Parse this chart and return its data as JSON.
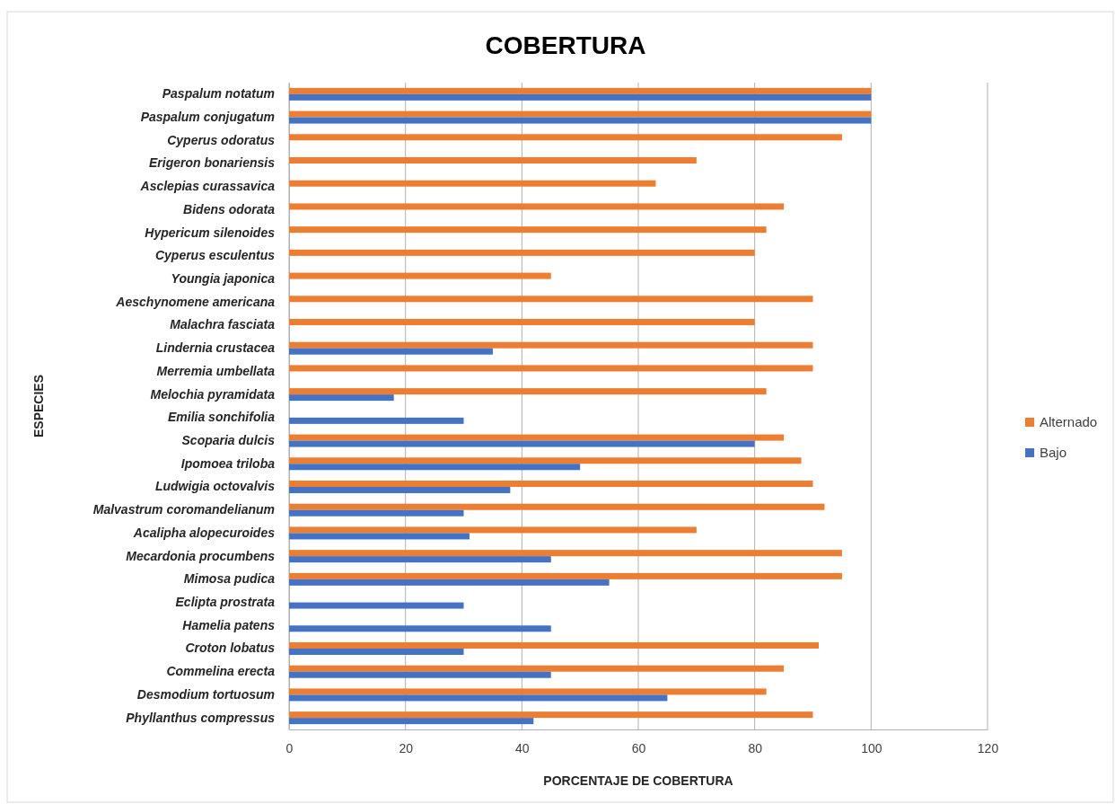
{
  "chart_data": {
    "type": "bar",
    "orientation": "horizontal",
    "title": "COBERTURA",
    "xlabel": "PORCENTAJE DE COBERTURA",
    "ylabel": "ESPECIES",
    "categories": [
      "Paspalum notatum",
      "Paspalum conjugatum",
      "Cyperus odoratus",
      "Erigeron bonariensis",
      "Asclepias curassavica",
      "Bidens odorata",
      "Hypericum silenoides",
      "Cyperus esculentus",
      "Youngia japonica",
      "Aeschynomene americana",
      "Malachra fasciata",
      "Lindernia crustacea",
      "Merremia umbellata",
      "Melochia pyramidata",
      "Emilia sonchifolia",
      "Scoparia dulcis",
      "Ipomoea triloba",
      "Ludwigia octovalvis",
      "Malvastrum coromandelianum",
      "Acalipha alopecuroides",
      "Mecardonia procumbens",
      "Mimosa pudica",
      "Eclipta prostrata",
      "Hamelia patens",
      "Croton lobatus",
      "Commelina erecta",
      "Desmodium tortuosum",
      "Phyllanthus compressus"
    ],
    "series": [
      {
        "name": "Alternado",
        "color": "#ed7d31",
        "values": [
          100,
          100,
          95,
          70,
          63,
          85,
          82,
          80,
          45,
          90,
          80,
          90,
          90,
          82,
          null,
          85,
          88,
          90,
          92,
          70,
          95,
          95,
          null,
          null,
          91,
          85,
          82,
          90
        ]
      },
      {
        "name": "Bajo",
        "color": "#4472c4",
        "values": [
          100,
          100,
          null,
          null,
          null,
          null,
          null,
          null,
          null,
          null,
          null,
          35,
          null,
          18,
          30,
          80,
          50,
          38,
          30,
          31,
          45,
          55,
          30,
          45,
          30,
          45,
          65,
          42
        ]
      }
    ],
    "xlim": [
      0,
      120
    ],
    "xticks": [
      0,
      20,
      40,
      60,
      80,
      100,
      120
    ],
    "grid": "x",
    "legend": "right"
  }
}
